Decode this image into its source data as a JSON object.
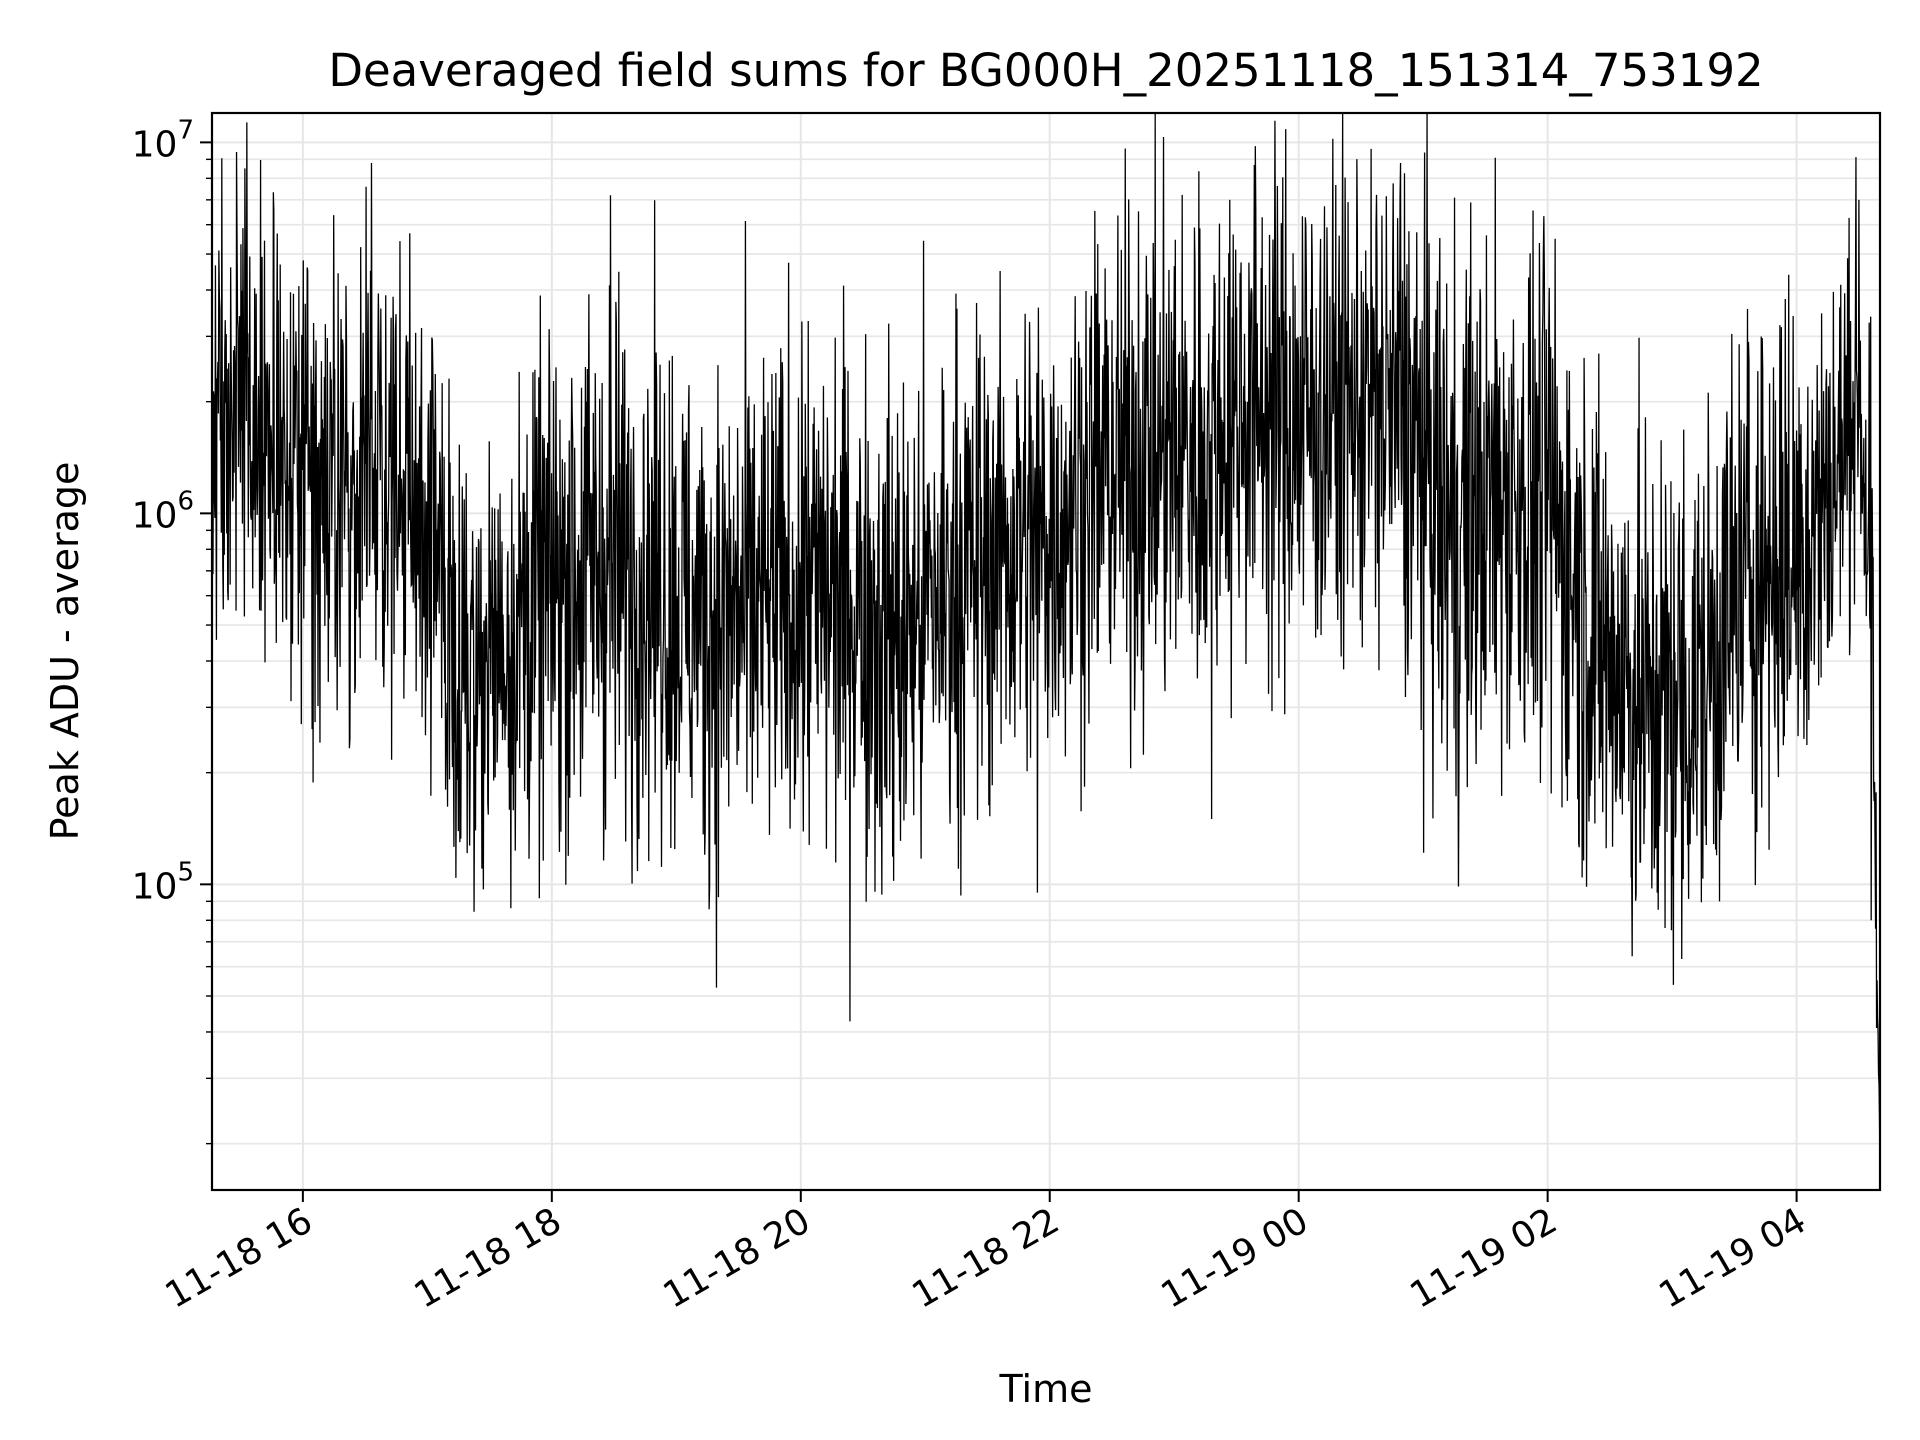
{
  "chart_data": {
    "type": "line",
    "title": "Deaveraged field sums for BG000H_20251118_151314_753192",
    "xlabel": "Time",
    "ylabel": "Peak ADU - average",
    "yscale": "log",
    "ylim": [
      15000,
      12000000
    ],
    "xlim_hours": [
      15.27,
      28.67
    ],
    "x_ticks": [
      {
        "label": "11-18 16",
        "hour": 16
      },
      {
        "label": "11-18 18",
        "hour": 18
      },
      {
        "label": "11-18 20",
        "hour": 20
      },
      {
        "label": "11-18 22",
        "hour": 22
      },
      {
        "label": "11-19 00",
        "hour": 24
      },
      {
        "label": "11-19 02",
        "hour": 26
      },
      {
        "label": "11-19 04",
        "hour": 28
      }
    ],
    "y_ticks": [
      {
        "base": "10",
        "exp": "5",
        "value": 100000
      },
      {
        "base": "10",
        "exp": "6",
        "value": 1000000
      },
      {
        "base": "10",
        "exp": "7",
        "value": 10000000
      }
    ],
    "grid": true,
    "line_color": "#000000",
    "grid_color": "#e6e6e6",
    "series": [
      {
        "name": "Deaveraged field sums",
        "hours": [
          15.27,
          15.5,
          15.8,
          16.1,
          16.4,
          16.7,
          17.0,
          17.3,
          17.6,
          18.0,
          18.4,
          18.8,
          19.2,
          19.6,
          20.0,
          20.4,
          20.8,
          21.2,
          21.6,
          22.0,
          22.4,
          22.8,
          23.2,
          23.6,
          24.0,
          24.4,
          24.8,
          25.2,
          25.6,
          26.0,
          26.4,
          26.8,
          27.2,
          27.6,
          28.0,
          28.3,
          28.5,
          28.6,
          28.67
        ],
        "levels": [
          2000000,
          2000000,
          1600000,
          1300000,
          1300000,
          1200000,
          900000,
          380000,
          450000,
          650000,
          750000,
          700000,
          500000,
          550000,
          600000,
          600000,
          450000,
          650000,
          800000,
          900000,
          1300000,
          1400000,
          1500000,
          2000000,
          1800000,
          2000000,
          1900000,
          900000,
          1100000,
          1100000,
          450000,
          300000,
          320000,
          700000,
          800000,
          1200000,
          2300000,
          600000,
          17000
        ],
        "spreads": [
          1.9,
          2.0,
          2.2,
          2.1,
          2.1,
          2.0,
          2.2,
          2.0,
          2.1,
          2.3,
          2.4,
          2.3,
          2.3,
          2.3,
          2.3,
          2.4,
          2.4,
          2.3,
          2.2,
          2.2,
          2.2,
          2.3,
          2.3,
          2.2,
          2.4,
          2.2,
          2.3,
          2.6,
          2.4,
          2.4,
          2.3,
          2.4,
          2.3,
          2.4,
          2.3,
          2.0,
          1.7,
          2.0,
          1.0
        ],
        "spikes": [
          {
            "hour": 16.55,
            "value": 8800000
          },
          {
            "hour": 18.47,
            "value": 7200000
          },
          {
            "hour": 20.06,
            "value": 3300000
          },
          {
            "hour": 21.9,
            "value": 95000
          },
          {
            "hour": 23.3,
            "value": 150000
          },
          {
            "hour": 24.82,
            "value": 8800000
          },
          {
            "hour": 26.88,
            "value": 95000
          },
          {
            "hour": 28.5,
            "value": 7000000
          },
          {
            "hour": 28.6,
            "value": 80000
          }
        ]
      }
    ]
  }
}
